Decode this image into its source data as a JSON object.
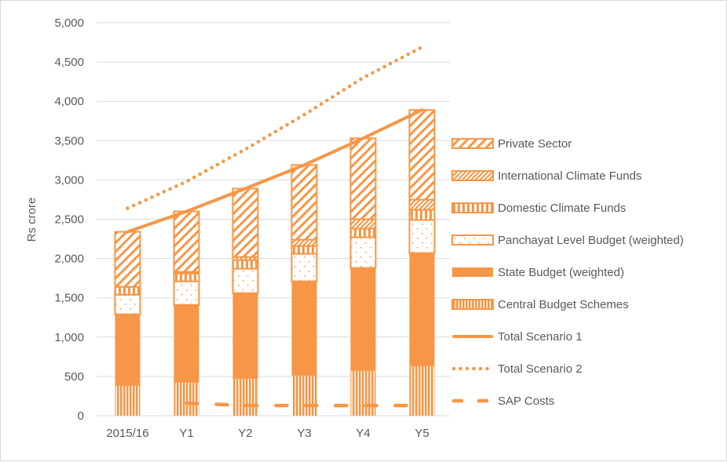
{
  "chart_data": {
    "type": "bar",
    "stacked": true,
    "title": "",
    "xlabel": "",
    "ylabel": "Rs crore",
    "ylim": [
      0,
      5000
    ],
    "yticks": [
      0,
      500,
      1000,
      1500,
      2000,
      2500,
      3000,
      3500,
      4000,
      4500,
      5000
    ],
    "ytick_labels": [
      "0",
      "500",
      "1,000",
      "1,500",
      "2,000",
      "2,500",
      "3,000",
      "3,500",
      "4,000",
      "4,500",
      "5,000"
    ],
    "grid": true,
    "legend_position": "right",
    "color": "#F79646",
    "categories": [
      "2015/16",
      "Y1",
      "Y2",
      "Y3",
      "Y4",
      "Y5"
    ],
    "series": [
      {
        "name": "Central Budget Schemes",
        "kind": "bar",
        "pattern": "vertical-fine",
        "values": [
          380,
          420,
          470,
          510,
          570,
          630
        ]
      },
      {
        "name": "State Budget (weighted)",
        "kind": "bar",
        "pattern": "solid",
        "values": [
          910,
          990,
          1090,
          1200,
          1310,
          1440
        ]
      },
      {
        "name": "Panchayat Level Budget (weighted)",
        "kind": "bar",
        "pattern": "dots",
        "values": [
          250,
          300,
          310,
          350,
          390,
          420
        ]
      },
      {
        "name": "Domestic Climate Funds",
        "kind": "bar",
        "pattern": "vertical-wide",
        "values": [
          100,
          100,
          110,
          100,
          110,
          130
        ]
      },
      {
        "name": "International Climate Funds",
        "kind": "bar",
        "pattern": "diagonal-fine",
        "values": [
          0,
          20,
          40,
          80,
          120,
          130
        ]
      },
      {
        "name": "Private Sector",
        "kind": "bar",
        "pattern": "diagonal-wide",
        "values": [
          700,
          770,
          870,
          950,
          1030,
          1140
        ]
      },
      {
        "name": "Total Scenario 1",
        "kind": "line",
        "style": "solid",
        "values": [
          2340,
          2600,
          2890,
          3190,
          3530,
          3890
        ]
      },
      {
        "name": "Total Scenario 2",
        "kind": "line",
        "style": "dotted",
        "values": [
          2640,
          2980,
          3390,
          3830,
          4300,
          4690
        ]
      },
      {
        "name": "SAP Costs",
        "kind": "line",
        "style": "dashed",
        "values": [
          null,
          160,
          130,
          130,
          130,
          130
        ]
      }
    ],
    "legend_order": [
      "Private Sector",
      "International Climate Funds",
      "Domestic Climate Funds",
      "Panchayat Level Budget (weighted)",
      "State Budget (weighted)",
      "Central Budget Schemes",
      "Total Scenario 1",
      "Total Scenario 2",
      "SAP Costs"
    ]
  }
}
